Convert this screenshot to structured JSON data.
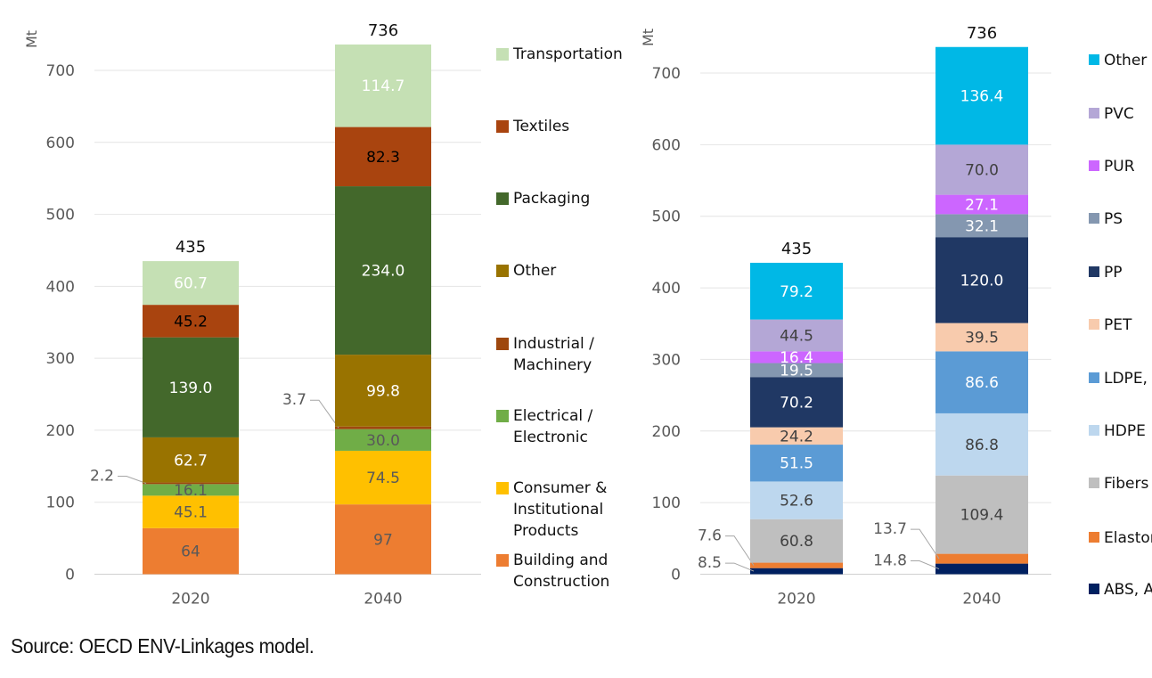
{
  "source_text": "Source: OECD ENV-Linkages model.",
  "chart_data": [
    {
      "type": "bar",
      "stacked": true,
      "ylabel": "Mt",
      "ylim": [
        0,
        700
      ],
      "yticks": [
        0,
        100,
        200,
        300,
        400,
        500,
        600,
        700
      ],
      "categories": [
        "2020",
        "2040"
      ],
      "totals": [
        "435",
        "736"
      ],
      "series": [
        {
          "name": "Building and Construction",
          "legend": [
            "Building and",
            "Construction"
          ],
          "color": "#ED7D31",
          "label_color": "#595959",
          "values": [
            64,
            97
          ],
          "labels": [
            "64",
            "97"
          ]
        },
        {
          "name": "Consumer & Institutional Products",
          "legend": [
            "Consumer &",
            "Institutional",
            "Products"
          ],
          "color": "#FFC000",
          "label_color": "#595959",
          "values": [
            45.1,
            74.5
          ],
          "labels": [
            "45.1",
            "74.5"
          ]
        },
        {
          "name": "Electrical / Electronic",
          "legend": [
            "Electrical /",
            "Electronic"
          ],
          "color": "#70AD47",
          "label_color": "#595959",
          "values": [
            16.1,
            30.0
          ],
          "labels": [
            "16.1",
            "30.0"
          ]
        },
        {
          "name": "Industrial / Machinery",
          "legend": [
            "Industrial /",
            "Machinery"
          ],
          "color": "#9E480E",
          "label_color": "#595959",
          "values": [
            2.2,
            3.7
          ],
          "labels": [
            "2.2",
            "3.7"
          ],
          "callout": true
        },
        {
          "name": "Other",
          "legend": [
            "Other"
          ],
          "color": "#997300",
          "label_color": "#ffffff",
          "values": [
            62.7,
            99.8
          ],
          "labels": [
            "62.7",
            "99.8"
          ]
        },
        {
          "name": "Packaging",
          "legend": [
            "Packaging"
          ],
          "color": "#43682B",
          "label_color": "#ffffff",
          "values": [
            139.0,
            234.0
          ],
          "labels": [
            "139.0",
            "234.0"
          ]
        },
        {
          "name": "Textiles",
          "legend": [
            "Textiles"
          ],
          "color": "#A9440F",
          "label_color": "#000000",
          "values": [
            45.2,
            82.3
          ],
          "labels": [
            "45.2",
            "82.3"
          ]
        },
        {
          "name": "Transportation",
          "legend": [
            "Transportation"
          ],
          "color": "#C5E0B4",
          "label_color": "#ffffff",
          "values": [
            60.7,
            114.7
          ],
          "labels": [
            "60.7",
            "114.7"
          ]
        }
      ]
    },
    {
      "type": "bar",
      "stacked": true,
      "ylabel": "Mt",
      "ylim": [
        0,
        700
      ],
      "yticks": [
        0,
        100,
        200,
        300,
        400,
        500,
        600,
        700
      ],
      "categories": [
        "2020",
        "2040"
      ],
      "totals": [
        "435",
        "736"
      ],
      "series": [
        {
          "name": "ABS, ASA, SAN",
          "legend": [
            "ABS, AS"
          ],
          "color": "#002060",
          "label_color": "#595959",
          "values": [
            8.5,
            14.8
          ],
          "labels": [
            "8.5",
            "14.8"
          ],
          "callout": true
        },
        {
          "name": "Elastomers",
          "legend": [
            "Elastor"
          ],
          "color": "#ED7D31",
          "label_color": "#595959",
          "values": [
            7.6,
            13.7
          ],
          "labels": [
            "7.6",
            "13.7"
          ],
          "callout": true
        },
        {
          "name": "Fibers",
          "legend": [
            "Fibers"
          ],
          "color": "#BFBFBF",
          "label_color": "#404040",
          "values": [
            60.8,
            109.4
          ],
          "labels": [
            "60.8",
            "109.4"
          ]
        },
        {
          "name": "HDPE",
          "legend": [
            "HDPE"
          ],
          "color": "#BDD7EE",
          "label_color": "#404040",
          "values": [
            52.6,
            86.8
          ],
          "labels": [
            "52.6",
            "86.8"
          ]
        },
        {
          "name": "LDPE, LLDPE",
          "legend": [
            "LDPE, L"
          ],
          "color": "#5B9BD5",
          "label_color": "#ffffff",
          "values": [
            51.5,
            86.6
          ],
          "labels": [
            "51.5",
            "86.6"
          ]
        },
        {
          "name": "PET",
          "legend": [
            "PET"
          ],
          "color": "#F8CBAD",
          "label_color": "#404040",
          "values": [
            24.2,
            39.5
          ],
          "labels": [
            "24.2",
            "39.5"
          ]
        },
        {
          "name": "PP",
          "legend": [
            "PP"
          ],
          "color": "#203864",
          "label_color": "#ffffff",
          "values": [
            70.2,
            120.0
          ],
          "labels": [
            "70.2",
            "120.0"
          ]
        },
        {
          "name": "PS",
          "legend": [
            "PS"
          ],
          "color": "#8497B0",
          "label_color": "#ffffff",
          "values": [
            19.5,
            32.1
          ],
          "labels": [
            "19.5",
            "32.1"
          ]
        },
        {
          "name": "PUR",
          "legend": [
            "PUR"
          ],
          "color": "#CC66FF",
          "label_color": "#ffffff",
          "values": [
            16.4,
            27.1
          ],
          "labels": [
            "16.4",
            "27.1"
          ]
        },
        {
          "name": "PVC",
          "legend": [
            "PVC"
          ],
          "color": "#B4A7D6",
          "label_color": "#404040",
          "values": [
            44.5,
            70.0
          ],
          "labels": [
            "44.5",
            "70.0"
          ]
        },
        {
          "name": "Other",
          "legend": [
            "Other"
          ],
          "color": "#00B8E6",
          "label_color": "#ffffff",
          "values": [
            79.2,
            136.4
          ],
          "labels": [
            "79.2",
            "136.4"
          ]
        }
      ]
    }
  ]
}
